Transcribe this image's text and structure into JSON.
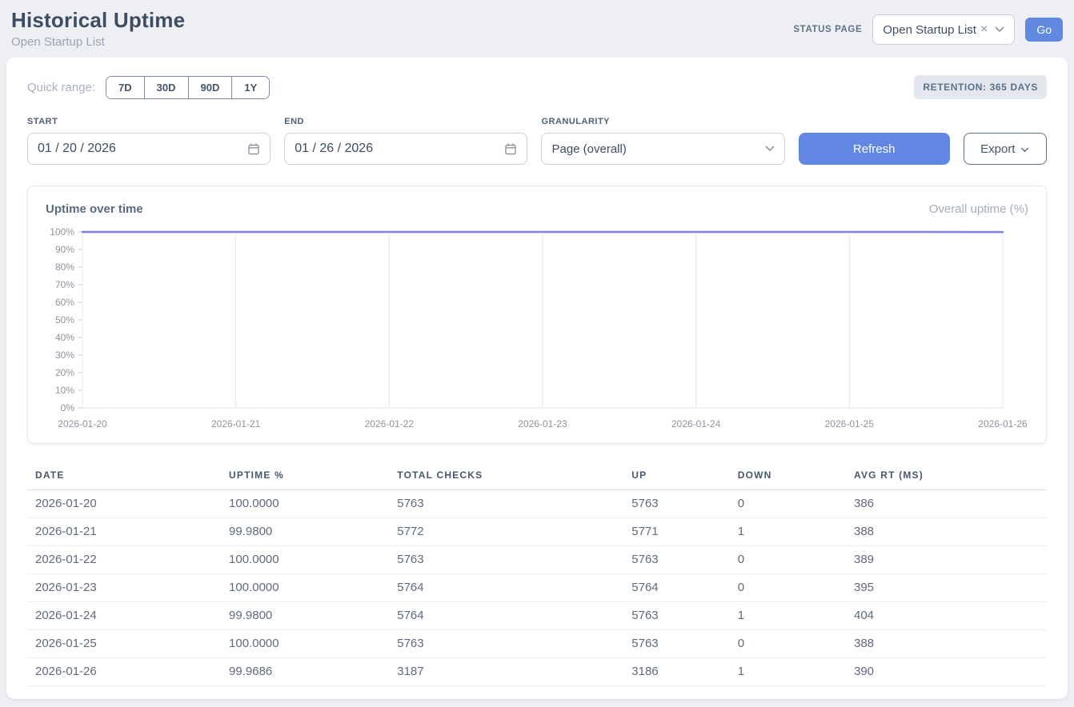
{
  "header": {
    "title": "Historical Uptime",
    "subtitle": "Open Startup List",
    "status_page_label": "STATUS PAGE",
    "status_page_value": "Open Startup List",
    "go_label": "Go"
  },
  "icons": {
    "clear": "×"
  },
  "controls": {
    "quick_range_label": "Quick range:",
    "quick_ranges": [
      "7D",
      "30D",
      "90D",
      "1Y"
    ],
    "retention_badge": "RETENTION: 365 DAYS",
    "start_label": "START",
    "start_value": "01 / 20 / 2026",
    "end_label": "END",
    "end_value": "01 / 26 / 2026",
    "granularity_label": "GRANULARITY",
    "granularity_value": "Page (overall)",
    "refresh_label": "Refresh",
    "export_label": "Export"
  },
  "chart": {
    "title": "Uptime over time",
    "legend": "Overall uptime (%)"
  },
  "chart_data": {
    "type": "line",
    "title": "Uptime over time",
    "x": [
      "2026-01-20",
      "2026-01-21",
      "2026-01-22",
      "2026-01-23",
      "2026-01-24",
      "2026-01-25",
      "2026-01-26"
    ],
    "series": [
      {
        "name": "Overall uptime (%)",
        "values": [
          100.0,
          99.98,
          100.0,
          100.0,
          99.98,
          100.0,
          99.9686
        ]
      }
    ],
    "xlabel": "",
    "ylabel": "",
    "ylim": [
      0,
      100
    ],
    "ytick_step": 10,
    "ytick_suffix": "%",
    "grid": "vertical",
    "legend_position": "top-right",
    "line_color": "#7e82e8",
    "grid_color": "#e5e8ec",
    "axis_color": "#dfe3e7",
    "tick_color": "#ccd2d9",
    "label_color": "#8d949e"
  },
  "table": {
    "columns": [
      "DATE",
      "UPTIME %",
      "TOTAL CHECKS",
      "UP",
      "DOWN",
      "AVG RT (MS)"
    ],
    "rows": [
      [
        "2026-01-20",
        "100.0000",
        "5763",
        "5763",
        "0",
        "386"
      ],
      [
        "2026-01-21",
        "99.9800",
        "5772",
        "5771",
        "1",
        "388"
      ],
      [
        "2026-01-22",
        "100.0000",
        "5763",
        "5763",
        "0",
        "389"
      ],
      [
        "2026-01-23",
        "100.0000",
        "5764",
        "5764",
        "0",
        "395"
      ],
      [
        "2026-01-24",
        "99.9800",
        "5764",
        "5763",
        "1",
        "404"
      ],
      [
        "2026-01-25",
        "100.0000",
        "5763",
        "5763",
        "0",
        "388"
      ],
      [
        "2026-01-26",
        "99.9686",
        "3187",
        "3186",
        "1",
        "390"
      ]
    ]
  },
  "colors": {
    "accent_blue": "#6186e3",
    "line_purple": "#7e82e8",
    "badge_bg": "#e3e8ef",
    "page_bg": "#edeff3"
  }
}
